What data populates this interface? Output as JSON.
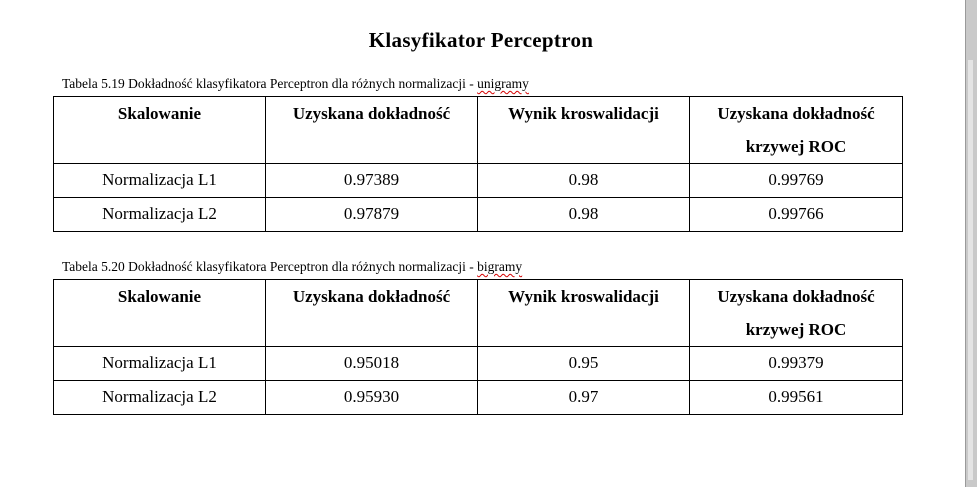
{
  "title": "Klasyfikator Perceptron",
  "tables": [
    {
      "caption_prefix": "Tabela 5.19 Dokładność klasyfikatora Perceptron dla różnych normalizacji - ",
      "caption_suffix": "unigramy",
      "headers": [
        "Skalowanie",
        "Uzyskana dokładność",
        "Wynik kroswalidacji",
        "Uzyskana dokładność krzywej ROC"
      ],
      "rows": [
        [
          "Normalizacja L1",
          "0.97389",
          "0.98",
          "0.99769"
        ],
        [
          "Normalizacja L2",
          "0.97879",
          "0.98",
          "0.99766"
        ]
      ]
    },
    {
      "caption_prefix": "Tabela 5.20 Dokładność klasyfikatora Perceptron dla różnych normalizacji - ",
      "caption_suffix": "bigramy",
      "headers": [
        "Skalowanie",
        "Uzyskana dokładność",
        "Wynik kroswalidacji",
        "Uzyskana dokładność krzywej ROC"
      ],
      "rows": [
        [
          "Normalizacja L1",
          "0.95018",
          "0.95",
          "0.99379"
        ],
        [
          "Normalizacja L2",
          "0.95930",
          "0.97",
          "0.99561"
        ]
      ]
    }
  ]
}
